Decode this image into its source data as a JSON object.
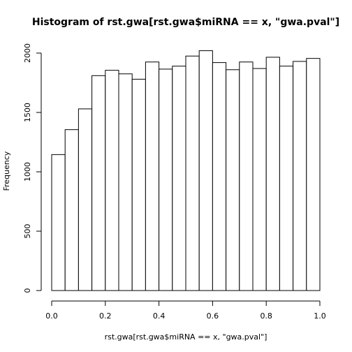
{
  "chart_data": {
    "type": "bar",
    "title": "Histogram of rst.gwa[rst.gwa$miRNA == x, \"gwa.pval\"]",
    "xlabel": "rst.gwa[rst.gwa$miRNA == x, \"gwa.pval\"]",
    "ylabel": "Frequency",
    "xlim": [
      0,
      1
    ],
    "ylim": [
      0,
      2000
    ],
    "bin_width": 0.05,
    "bin_starts": [
      0.0,
      0.05,
      0.1,
      0.15,
      0.2,
      0.25,
      0.3,
      0.35,
      0.4,
      0.45,
      0.5,
      0.55,
      0.6,
      0.65,
      0.7,
      0.75,
      0.8,
      0.85,
      0.9,
      0.95
    ],
    "values": [
      1145,
      1355,
      1530,
      1810,
      1855,
      1825,
      1780,
      1925,
      1865,
      1890,
      1975,
      2020,
      1920,
      1860,
      1925,
      1870,
      1965,
      1890,
      1930,
      1955
    ],
    "x_ticks": [
      "0.0",
      "0.2",
      "0.4",
      "0.6",
      "0.8",
      "1.0"
    ],
    "y_ticks": [
      "0",
      "500",
      "1000",
      "1500",
      "2000"
    ],
    "grid": false
  }
}
